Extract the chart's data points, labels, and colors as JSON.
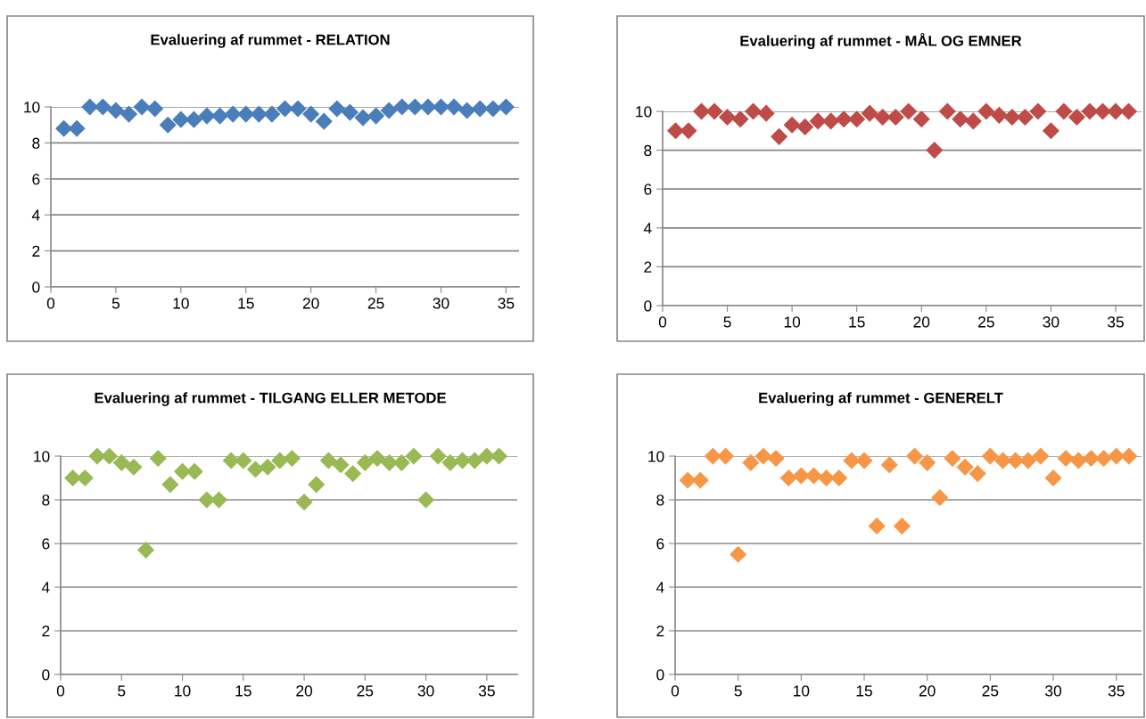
{
  "chart_data": [
    {
      "type": "scatter",
      "title": "Evaluering af rummet - RELATION",
      "marker": "diamond",
      "grid": "y",
      "xlim": [
        0,
        36
      ],
      "xticks": [
        0,
        5,
        10,
        15,
        20,
        25,
        30,
        35
      ],
      "ylim": [
        0,
        10
      ],
      "yticks": [
        0,
        2,
        4,
        6,
        8,
        10
      ],
      "series": [
        {
          "color": "#4a7ebb",
          "x": [
            1,
            2,
            3,
            4,
            5,
            6,
            7,
            8,
            9,
            10,
            11,
            12,
            13,
            14,
            15,
            16,
            17,
            18,
            19,
            20,
            21,
            22,
            23,
            24,
            25,
            26,
            27,
            28,
            29,
            30,
            31,
            32,
            33,
            34,
            35
          ],
          "values": [
            8.8,
            8.8,
            10,
            10,
            9.8,
            9.6,
            10,
            9.9,
            9.0,
            9.3,
            9.3,
            9.5,
            9.5,
            9.6,
            9.6,
            9.6,
            9.6,
            9.9,
            9.9,
            9.6,
            9.2,
            9.9,
            9.7,
            9.4,
            9.5,
            9.8,
            10,
            10,
            10,
            10,
            10,
            9.8,
            9.9,
            9.9,
            10
          ]
        }
      ]
    },
    {
      "type": "scatter",
      "title": "Evaluering af rummet - MÅL OG EMNER",
      "marker": "diamond",
      "grid": "y",
      "xlim": [
        0,
        37
      ],
      "xticks": [
        0,
        5,
        10,
        15,
        20,
        25,
        30,
        35
      ],
      "ylim": [
        0,
        10
      ],
      "yticks": [
        0,
        2,
        4,
        6,
        8,
        10
      ],
      "series": [
        {
          "color": "#be4b48",
          "x": [
            1,
            2,
            3,
            4,
            5,
            6,
            7,
            8,
            9,
            10,
            11,
            12,
            13,
            14,
            15,
            16,
            17,
            18,
            19,
            20,
            21,
            22,
            23,
            24,
            25,
            26,
            27,
            28,
            29,
            30,
            31,
            32,
            33,
            34,
            35,
            36
          ],
          "values": [
            9.0,
            9.0,
            10,
            10,
            9.7,
            9.6,
            10,
            9.9,
            8.7,
            9.3,
            9.2,
            9.5,
            9.5,
            9.6,
            9.6,
            9.9,
            9.7,
            9.7,
            10,
            9.6,
            8.0,
            10,
            9.6,
            9.5,
            10,
            9.8,
            9.7,
            9.7,
            10,
            9.0,
            10,
            9.7,
            10,
            10,
            10,
            10
          ]
        }
      ]
    },
    {
      "type": "scatter",
      "title": "Evaluering af rummet - TILGANG ELLER METODE",
      "marker": "diamond",
      "grid": "y",
      "xlim": [
        0,
        37.5
      ],
      "xticks": [
        0,
        5,
        10,
        15,
        20,
        25,
        30,
        35
      ],
      "ylim": [
        0,
        10
      ],
      "yticks": [
        0,
        2,
        4,
        6,
        8,
        10
      ],
      "series": [
        {
          "color": "#98b954",
          "x": [
            1,
            2,
            3,
            4,
            5,
            6,
            7,
            8,
            9,
            10,
            11,
            12,
            13,
            14,
            15,
            16,
            17,
            18,
            19,
            20,
            21,
            22,
            23,
            24,
            25,
            26,
            27,
            28,
            29,
            30,
            31,
            32,
            33,
            34,
            35,
            36
          ],
          "values": [
            9.0,
            9.0,
            10,
            10,
            9.7,
            9.5,
            5.7,
            9.9,
            8.7,
            9.3,
            9.3,
            8.0,
            8.0,
            9.8,
            9.8,
            9.4,
            9.5,
            9.8,
            9.9,
            7.9,
            8.7,
            9.8,
            9.6,
            9.2,
            9.7,
            9.9,
            9.7,
            9.7,
            10,
            8.0,
            10,
            9.7,
            9.8,
            9.8,
            10,
            10
          ]
        }
      ]
    },
    {
      "type": "scatter",
      "title": "Evaluering af rummet - GENERELT",
      "marker": "diamond",
      "grid": "y",
      "xlim": [
        0,
        37
      ],
      "xticks": [
        0,
        5,
        10,
        15,
        20,
        25,
        30,
        35
      ],
      "ylim": [
        0,
        10
      ],
      "yticks": [
        0,
        2,
        4,
        6,
        8,
        10
      ],
      "series": [
        {
          "color": "#f79646",
          "x": [
            1,
            2,
            3,
            4,
            5,
            6,
            7,
            8,
            9,
            10,
            11,
            12,
            13,
            14,
            15,
            16,
            17,
            18,
            19,
            20,
            21,
            22,
            23,
            24,
            25,
            26,
            27,
            28,
            29,
            30,
            31,
            32,
            33,
            34,
            35,
            36
          ],
          "values": [
            8.9,
            8.9,
            10,
            10,
            5.5,
            9.7,
            10,
            9.9,
            9.0,
            9.1,
            9.1,
            9.0,
            9.0,
            9.8,
            9.8,
            6.8,
            9.6,
            6.8,
            10,
            9.7,
            8.1,
            9.9,
            9.5,
            9.2,
            10,
            9.8,
            9.8,
            9.8,
            10,
            9.0,
            9.9,
            9.8,
            9.9,
            9.9,
            10,
            10
          ]
        }
      ]
    }
  ]
}
